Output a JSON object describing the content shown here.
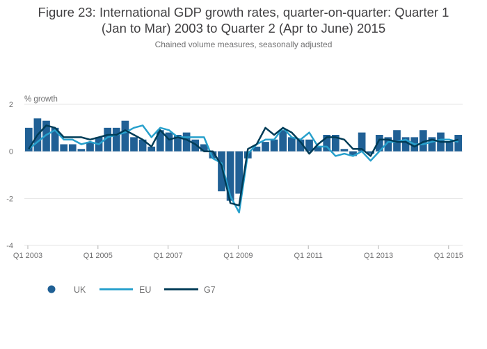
{
  "title_line1": "Figure 23: International GDP growth rates, quarter-on-quarter: Quarter 1",
  "title_line2": "(Jan to Mar) 2003 to Quarter 2 (Apr to June) 2015",
  "subtitle": "Chained volume measures, seasonally adjusted",
  "colors": {
    "uk": "#206095",
    "eu": "#27a0cc",
    "g7": "#003c57",
    "grid": "#e5e5e5",
    "text": "#707071"
  },
  "chart_data": {
    "type": "bar",
    "title": "Figure 23: International GDP growth rates, quarter-on-quarter: Quarter 1 (Jan to Mar) 2003 to Quarter 2 (Apr to June) 2015",
    "subtitle": "Chained volume measures, seasonally adjusted",
    "ylabel": "% growth",
    "xlabel": "",
    "ylim": [
      -4,
      2
    ],
    "yticks": [
      -4,
      -2,
      0,
      2
    ],
    "grid": true,
    "legend_position": "bottom-left",
    "x_tick_labels": [
      "Q1 2003",
      "Q1 2005",
      "Q1 2007",
      "Q1 2009",
      "Q1 2011",
      "Q1 2013",
      "Q1 2015"
    ],
    "x_tick_indices": [
      0,
      8,
      16,
      24,
      32,
      40,
      48
    ],
    "categories": [
      "Q1 2003",
      "Q2 2003",
      "Q3 2003",
      "Q4 2003",
      "Q1 2004",
      "Q2 2004",
      "Q3 2004",
      "Q4 2004",
      "Q1 2005",
      "Q2 2005",
      "Q3 2005",
      "Q4 2005",
      "Q1 2006",
      "Q2 2006",
      "Q3 2006",
      "Q4 2006",
      "Q1 2007",
      "Q2 2007",
      "Q3 2007",
      "Q4 2007",
      "Q1 2008",
      "Q2 2008",
      "Q3 2008",
      "Q4 2008",
      "Q1 2009",
      "Q2 2009",
      "Q3 2009",
      "Q4 2009",
      "Q1 2010",
      "Q2 2010",
      "Q3 2010",
      "Q4 2010",
      "Q1 2011",
      "Q2 2011",
      "Q3 2011",
      "Q4 2011",
      "Q1 2012",
      "Q2 2012",
      "Q3 2012",
      "Q4 2012",
      "Q1 2013",
      "Q2 2013",
      "Q3 2013",
      "Q4 2013",
      "Q1 2014",
      "Q2 2014",
      "Q3 2014",
      "Q4 2014",
      "Q1 2015",
      "Q2 2015"
    ],
    "series": [
      {
        "name": "UK",
        "type": "bar",
        "values": [
          1.0,
          1.4,
          1.3,
          1.0,
          0.3,
          0.3,
          0.1,
          0.4,
          0.6,
          1.0,
          1.0,
          1.3,
          0.6,
          0.5,
          0.2,
          0.9,
          0.8,
          0.7,
          0.8,
          0.5,
          0.3,
          -0.3,
          -1.7,
          -2.1,
          -1.8,
          -0.3,
          0.2,
          0.4,
          0.5,
          0.9,
          0.6,
          0.5,
          0.5,
          0.2,
          0.7,
          0.7,
          0.1,
          -0.2,
          0.8,
          -0.1,
          0.7,
          0.6,
          0.9,
          0.6,
          0.6,
          0.9,
          0.6,
          0.8,
          0.4,
          0.7
        ]
      },
      {
        "name": "EU",
        "type": "line",
        "values": [
          0.1,
          0.4,
          0.7,
          0.9,
          0.5,
          0.5,
          0.3,
          0.4,
          0.3,
          0.6,
          0.7,
          0.8,
          1.0,
          1.1,
          0.6,
          1.0,
          0.9,
          0.6,
          0.6,
          0.6,
          0.6,
          -0.3,
          -0.5,
          -1.9,
          -2.6,
          -0.1,
          0.3,
          0.5,
          0.5,
          1.0,
          0.6,
          0.5,
          0.8,
          0.2,
          0.2,
          -0.2,
          -0.1,
          -0.2,
          0.0,
          -0.4,
          0.0,
          0.4,
          0.4,
          0.5,
          0.3,
          0.3,
          0.4,
          0.5,
          0.5,
          0.4
        ]
      },
      {
        "name": "G7",
        "type": "line",
        "values": [
          0.1,
          0.7,
          1.1,
          1.0,
          0.6,
          0.6,
          0.6,
          0.5,
          0.6,
          0.7,
          0.7,
          0.9,
          0.7,
          0.5,
          0.2,
          0.9,
          0.5,
          0.6,
          0.5,
          0.3,
          0.0,
          0.0,
          -0.6,
          -2.2,
          -2.3,
          0.1,
          0.3,
          1.0,
          0.7,
          1.0,
          0.8,
          0.4,
          -0.1,
          0.3,
          0.6,
          0.6,
          0.5,
          0.1,
          0.1,
          -0.2,
          0.5,
          0.5,
          0.4,
          0.4,
          0.2,
          0.4,
          0.5,
          0.4,
          0.4,
          0.5
        ]
      }
    ]
  },
  "legend": [
    {
      "label": "UK"
    },
    {
      "label": "EU"
    },
    {
      "label": "G7"
    }
  ]
}
